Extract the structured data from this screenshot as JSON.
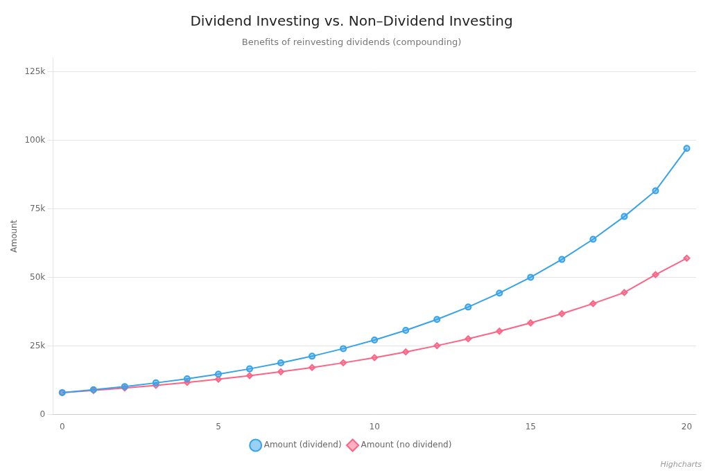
{
  "chart_data": {
    "type": "line",
    "title": "Dividend Investing vs. Non–Dividend Investing",
    "subtitle": "Benefits of reinvesting dividends (compounding)",
    "y_label": "Amount",
    "x": [
      0,
      1,
      2,
      3,
      4,
      5,
      6,
      7,
      8,
      9,
      10,
      11,
      12,
      13,
      14,
      15,
      16,
      17,
      18,
      19,
      20
    ],
    "series": [
      {
        "name": "Amount (dividend)",
        "marker": "circle",
        "values": [
          8000,
          9040,
          10215,
          11543,
          13044,
          14739,
          16655,
          18820,
          21267,
          24032,
          27156,
          30687,
          34676,
          39184,
          44278,
          50034,
          56538,
          63888,
          72194,
          81579,
          97000
        ]
      },
      {
        "name": "Amount (no dividend)",
        "marker": "diamond",
        "values": [
          8000,
          8800,
          9680,
          10648,
          11713,
          12884,
          14172,
          15589,
          17148,
          18863,
          20749,
          22824,
          25107,
          27617,
          30379,
          33417,
          36759,
          40434,
          44478,
          51000,
          57000
        ]
      }
    ],
    "xlim": [
      -0.3,
      20.3
    ],
    "xticks": [
      0,
      5,
      10,
      15,
      20
    ],
    "ylim": [
      0,
      130000
    ],
    "yticks": [
      0,
      {
        "value": 25000,
        "label": "25k"
      },
      {
        "value": 50000,
        "label": "50k"
      },
      {
        "value": 75000,
        "label": "75k"
      },
      {
        "value": 100000,
        "label": "100k"
      },
      {
        "value": 125000,
        "label": "125k"
      }
    ],
    "grid": "y",
    "legend": "bottom",
    "annotations": [
      "Highcharts"
    ]
  }
}
